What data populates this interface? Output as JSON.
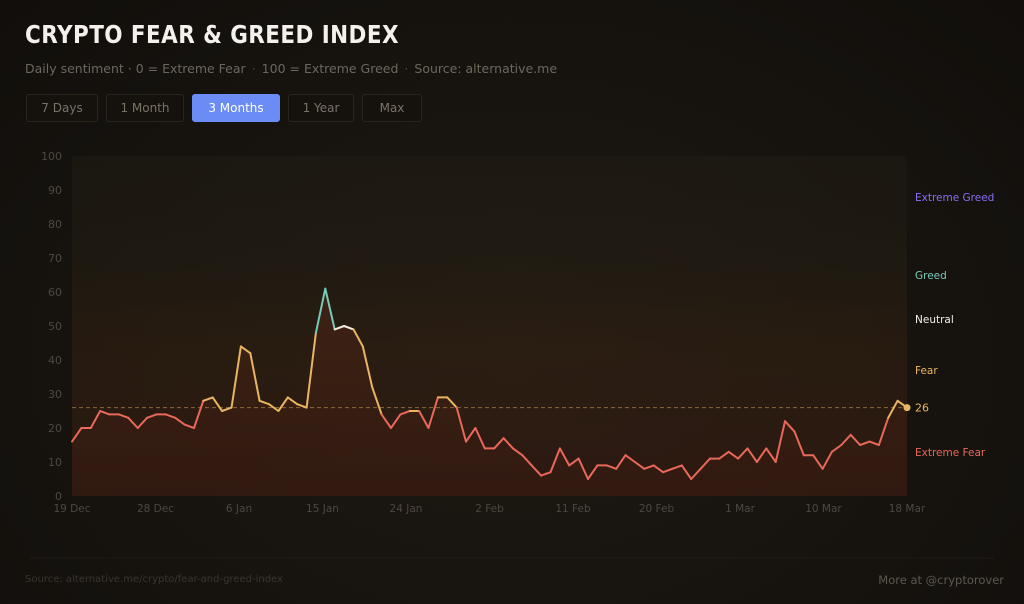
{
  "header": {
    "title": "CRYPTO FEAR & GREED INDEX",
    "subtitle_parts": [
      "Daily sentiment · 0 = Extreme Fear",
      "100 = Extreme Greed",
      "Source: alternative.me"
    ],
    "subtitle_sep": "·"
  },
  "tabs": [
    {
      "label": "7 Days",
      "active": false
    },
    {
      "label": "1 Month",
      "active": false
    },
    {
      "label": "3 Months",
      "active": true
    },
    {
      "label": "1 Year",
      "active": false
    },
    {
      "label": "Max",
      "active": false
    }
  ],
  "footer": {
    "source": "Source: alternative.me/crypto/fear-and-greed-index",
    "credit": "More at @cryptorover"
  },
  "colors": {
    "background": "#17130f",
    "accent_tab": "#6a8cf4",
    "extreme_fear": "#e8685a",
    "fear": "#e9b560",
    "neutral": "#f2ede4",
    "greed": "#79c9b8",
    "extreme_greed": "#8a6cf2",
    "current_marker": "#e9b560"
  },
  "chart_data": {
    "type": "line",
    "title": "",
    "xlabel": "",
    "ylabel": "",
    "ylim": [
      0,
      100
    ],
    "yticks": [
      0,
      10,
      20,
      30,
      40,
      50,
      60,
      70,
      80,
      90,
      100
    ],
    "xticks": [
      "19 Dec",
      "28 Dec",
      "6 Jan",
      "15 Jan",
      "24 Jan",
      "2 Feb",
      "11 Feb",
      "20 Feb",
      "1 Mar",
      "10 Mar",
      "18 Mar"
    ],
    "grid": false,
    "zones": [
      {
        "label": "Extreme Greed",
        "value": 88
      },
      {
        "label": "Greed",
        "value": 65
      },
      {
        "label": "Neutral",
        "value": 52
      },
      {
        "label": "Fear",
        "value": 37
      },
      {
        "label": "Extreme Fear",
        "value": 13
      }
    ],
    "current": {
      "value": 26,
      "label": "26"
    },
    "reference_line": 26,
    "series": [
      {
        "values": [
          16,
          20,
          20,
          25,
          24,
          24,
          23,
          20,
          23,
          24,
          24,
          23,
          21,
          20,
          28,
          29,
          25,
          26,
          44,
          42,
          28,
          27,
          25,
          29,
          27,
          26,
          48,
          61,
          49,
          50,
          49,
          44,
          32,
          24,
          20,
          24,
          25,
          25,
          20,
          29,
          29,
          26,
          16,
          20,
          14,
          14,
          17,
          14,
          12,
          9,
          6,
          7,
          14,
          9,
          11,
          5,
          9,
          9,
          8,
          12,
          10,
          8,
          9,
          7,
          8,
          9,
          5,
          8,
          11,
          11,
          13,
          11,
          14,
          10,
          14,
          10,
          22,
          19,
          12,
          12,
          8,
          13,
          15,
          18,
          15,
          16,
          15,
          23,
          28,
          26
        ]
      }
    ]
  }
}
